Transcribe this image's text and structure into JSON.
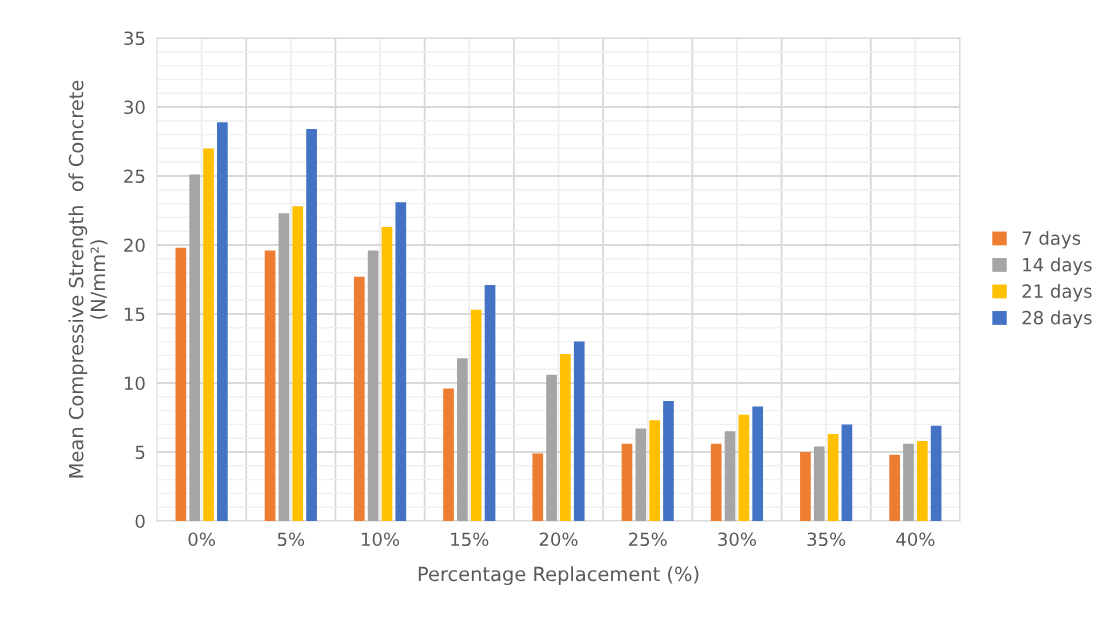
{
  "chart_data": {
    "type": "bar",
    "xlabel": "Percentage Replacement (%)",
    "ylabel": "Mean Compressive Strength  of Concrete\n(N/mm²)",
    "categories": [
      "0%",
      "5%",
      "10%",
      "15%",
      "20%",
      "25%",
      "30%",
      "35%",
      "40%"
    ],
    "series": [
      {
        "name": "7 days",
        "color": "#ed7d31",
        "values": [
          19.8,
          19.6,
          17.7,
          9.6,
          4.9,
          5.6,
          5.6,
          5.0,
          4.8
        ]
      },
      {
        "name": "14 days",
        "color": "#a5a5a5",
        "values": [
          25.1,
          22.3,
          19.6,
          11.8,
          10.6,
          6.7,
          6.5,
          5.4,
          5.6
        ]
      },
      {
        "name": "21 days",
        "color": "#ffc000",
        "values": [
          27.0,
          22.8,
          21.3,
          15.3,
          12.1,
          7.3,
          7.7,
          6.3,
          5.8
        ]
      },
      {
        "name": "28 days",
        "color": "#4472c4",
        "values": [
          28.9,
          28.4,
          23.1,
          17.1,
          13.0,
          8.7,
          8.3,
          7.0,
          6.9
        ]
      }
    ],
    "ylim": [
      0,
      35
    ],
    "yticks": [
      0,
      5,
      10,
      15,
      20,
      25,
      30,
      35
    ],
    "grid": true,
    "legend": "right"
  }
}
